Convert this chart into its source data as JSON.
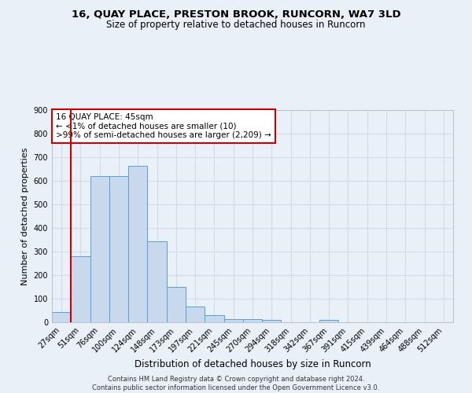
{
  "title1": "16, QUAY PLACE, PRESTON BROOK, RUNCORN, WA7 3LD",
  "title2": "Size of property relative to detached houses in Runcorn",
  "xlabel": "Distribution of detached houses by size in Runcorn",
  "ylabel": "Number of detached properties",
  "categories": [
    "27sqm",
    "51sqm",
    "76sqm",
    "100sqm",
    "124sqm",
    "148sqm",
    "173sqm",
    "197sqm",
    "221sqm",
    "245sqm",
    "270sqm",
    "294sqm",
    "318sqm",
    "342sqm",
    "367sqm",
    "391sqm",
    "415sqm",
    "439sqm",
    "464sqm",
    "488sqm",
    "512sqm"
  ],
  "values": [
    45,
    280,
    620,
    620,
    665,
    345,
    150,
    68,
    30,
    15,
    14,
    10,
    0,
    0,
    10,
    0,
    0,
    0,
    0,
    0,
    0
  ],
  "bar_color": "#c8d9ed",
  "bar_edge_color": "#5a9fd4",
  "vline_color": "#cc0000",
  "annotation_text": "16 QUAY PLACE: 45sqm\n← <1% of detached houses are smaller (10)\n>99% of semi-detached houses are larger (2,209) →",
  "annotation_box_color": "#ffffff",
  "annotation_box_edge": "#cc0000",
  "ylim": [
    0,
    900
  ],
  "yticks": [
    0,
    100,
    200,
    300,
    400,
    500,
    600,
    700,
    800,
    900
  ],
  "bg_color": "#eaf0f8",
  "grid_color": "#d0dce8",
  "footer": "Contains HM Land Registry data © Crown copyright and database right 2024.\nContains public sector information licensed under the Open Government Licence v3.0.",
  "title1_fontsize": 9.5,
  "title2_fontsize": 8.5,
  "xlabel_fontsize": 8.5,
  "ylabel_fontsize": 8,
  "tick_fontsize": 7,
  "annotation_fontsize": 7.5,
  "footer_fontsize": 6
}
